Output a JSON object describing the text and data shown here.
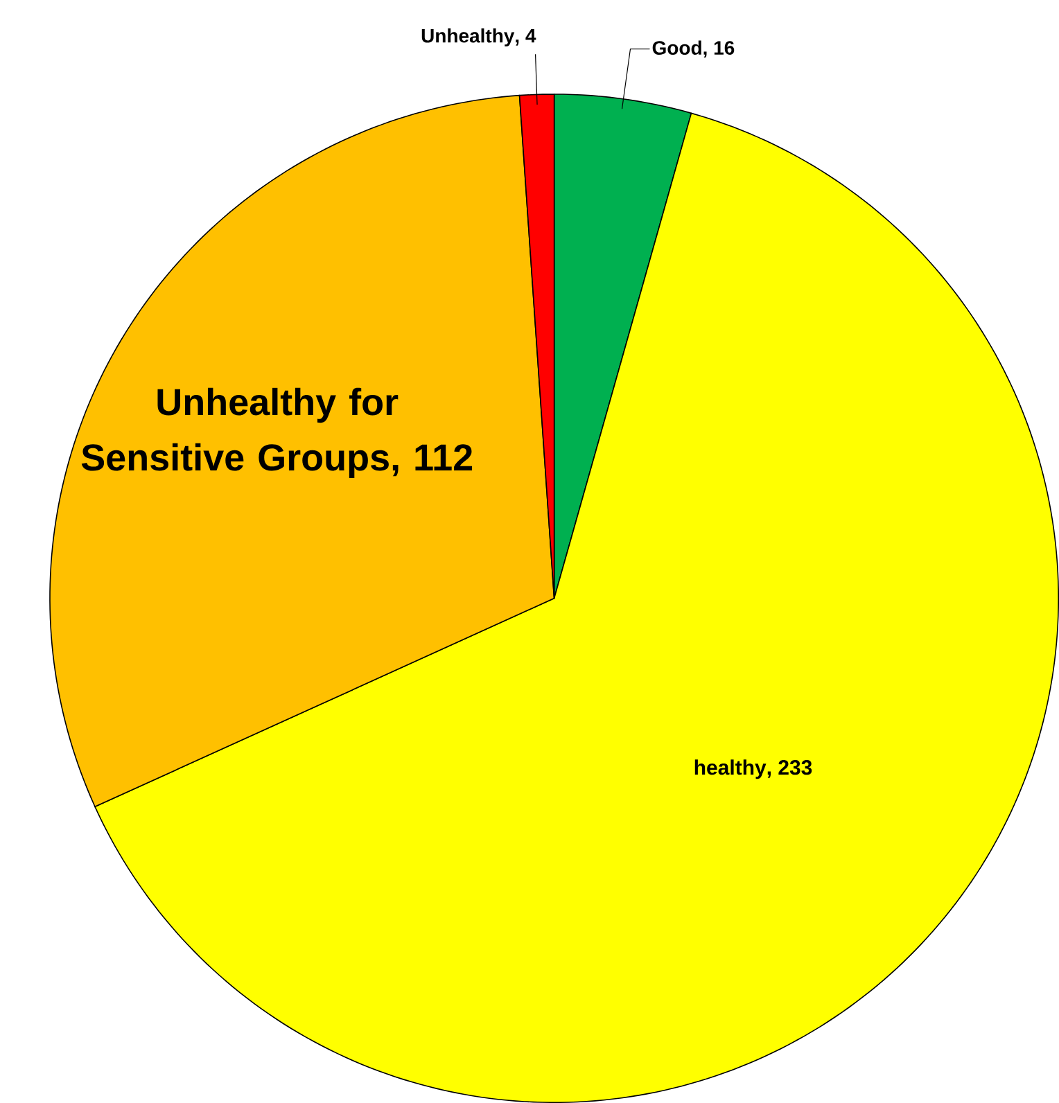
{
  "chart_data": {
    "type": "pie",
    "categories": [
      "Good",
      "healthy",
      "Unhealthy for Sensitive Groups",
      "Unhealthy"
    ],
    "values": [
      16,
      233,
      112,
      4
    ],
    "value_labels": [
      ", 16",
      ", 233",
      ", 112",
      ", 4"
    ],
    "colors": [
      "#00b050",
      "#ffff00",
      "#ffc000",
      "#ff0000"
    ],
    "data_labels": true
  }
}
